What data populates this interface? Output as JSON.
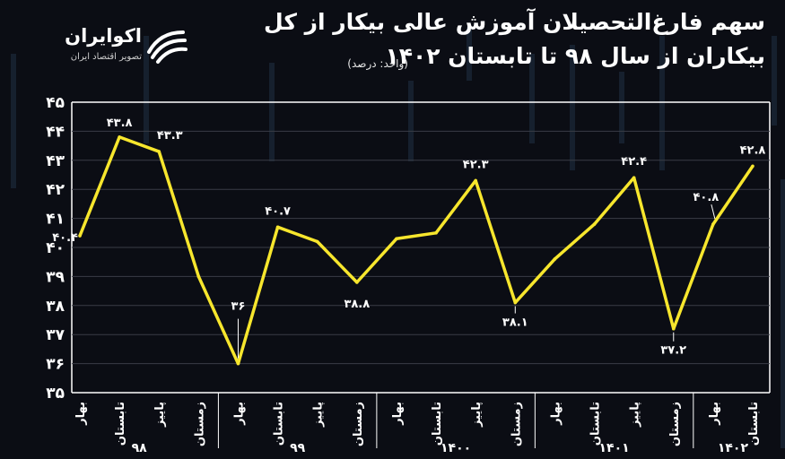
{
  "title_line1": "سهم فارغ‌التحصیلان آموزش عالی بیکار از کل",
  "title_line2": "بیکاران از سال ۹۸ تا تابستان ۱۴۰۲",
  "unit_note": "(واحد: درصد)",
  "logo": {
    "name": "اکوایران",
    "tagline": "تصویر اقتصاد ایران",
    "icon": "ecoiran-stripes-icon"
  },
  "colors": {
    "background": "#0b0d14",
    "line": "#f7e62d",
    "grid": "#3a3d46",
    "text": "#ffffff"
  },
  "chart_data": {
    "type": "line",
    "y_ticks": [
      "۳۵",
      "۳۶",
      "۳۷",
      "۳۸",
      "۳۹",
      "۴۰",
      "۴۱",
      "۴۲",
      "۴۳",
      "۴۴",
      "۴۵"
    ],
    "ylim": [
      35,
      45
    ],
    "grid": true,
    "categories": [
      "بهار",
      "تابستان",
      "پاییز",
      "زمستان",
      "بهار",
      "تابستان",
      "پاییز",
      "زمستان",
      "بهار",
      "تابستان",
      "پاییز",
      "زمستان",
      "بهار",
      "تابستان",
      "پاییز",
      "زمستان",
      "بهار",
      "تابستان"
    ],
    "year_groups": [
      {
        "label": "۹۸",
        "start": 0,
        "end": 3
      },
      {
        "label": "۹۹",
        "start": 4,
        "end": 7
      },
      {
        "label": "۱۴۰۰",
        "start": 8,
        "end": 11
      },
      {
        "label": "۱۴۰۱",
        "start": 12,
        "end": 15
      },
      {
        "label": "۱۴۰۲",
        "start": 16,
        "end": 17
      }
    ],
    "series": [
      {
        "values": [
          40.4,
          43.8,
          43.3,
          39.0,
          36.0,
          40.7,
          40.2,
          38.8,
          40.3,
          40.5,
          42.3,
          38.1,
          39.6,
          40.8,
          42.4,
          37.2,
          40.8,
          42.8
        ]
      }
    ],
    "data_labels": [
      {
        "index": 0,
        "text": "۴۰.۴"
      },
      {
        "index": 1,
        "text": "۴۳.۸"
      },
      {
        "index": 2,
        "text": "۴۳.۳"
      },
      {
        "index": 4,
        "text": "۳۶"
      },
      {
        "index": 5,
        "text": "۴۰.۷"
      },
      {
        "index": 7,
        "text": "۳۸.۸"
      },
      {
        "index": 10,
        "text": "۴۲.۳"
      },
      {
        "index": 11,
        "text": "۳۸.۱"
      },
      {
        "index": 14,
        "text": "۴۲.۴"
      },
      {
        "index": 15,
        "text": "۳۷.۲"
      },
      {
        "index": 16,
        "text": "۴۰.۸"
      },
      {
        "index": 17,
        "text": "۴۲.۸"
      }
    ]
  }
}
